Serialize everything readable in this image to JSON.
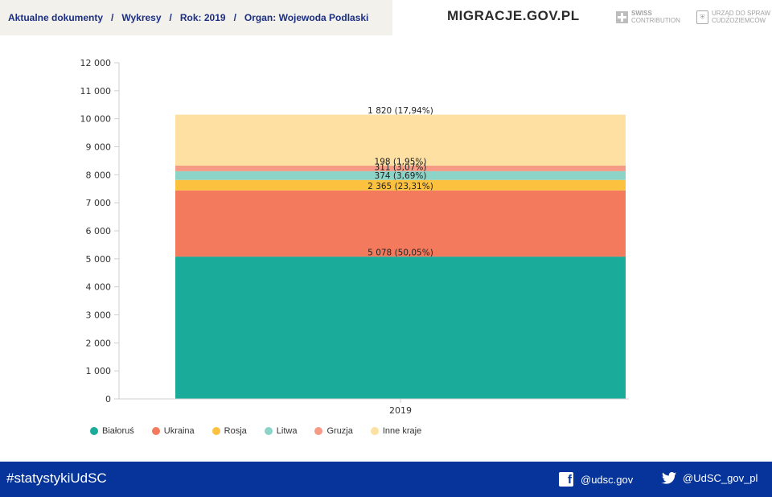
{
  "breadcrumb": [
    "Aktualne dokumenty",
    "Wykresy",
    "Rok: 2019",
    "Organ: Wojewoda Podlaski"
  ],
  "breadcrumb_separator": "/",
  "brand": "MIGRACJE.GOV.PL",
  "partners": {
    "swiss": {
      "line1": "SWISS",
      "line2": "CONTRIBUTION",
      "icon": "swiss-cross-icon"
    },
    "udsc": {
      "line1": "URZĄD DO SPRAW",
      "line2": "CUDZOZIEMCÓW",
      "icon": "udsc-emblem-icon"
    }
  },
  "chart_data": {
    "type": "bar",
    "stacked": true,
    "categories": [
      "2019"
    ],
    "ylim": [
      0,
      12000
    ],
    "yticks": [
      0,
      1000,
      2000,
      3000,
      4000,
      5000,
      6000,
      7000,
      8000,
      9000,
      10000,
      11000,
      12000
    ],
    "ytick_labels": [
      "0",
      "1 000",
      "2 000",
      "3 000",
      "4 000",
      "5 000",
      "6 000",
      "7 000",
      "8 000",
      "9 000",
      "10 000",
      "11 000",
      "12 000"
    ],
    "grid": false,
    "legend_position": "bottom-left",
    "series": [
      {
        "name": "Białoruś",
        "values": [
          5078
        ],
        "label": "5 078 (50,05%)",
        "color": "#1aab9b"
      },
      {
        "name": "Ukraina",
        "values": [
          2365
        ],
        "label": "2 365 (23,31%)",
        "color": "#f47a5e"
      },
      {
        "name": "Rosja",
        "values": [
          374
        ],
        "label": "374 (3,69%)",
        "color": "#fcc23f"
      },
      {
        "name": "Litwa",
        "values": [
          311
        ],
        "label": "311 (3,07%)",
        "color": "#8bd4c7"
      },
      {
        "name": "Gruzja",
        "values": [
          198
        ],
        "label": "198 (1,95%)",
        "color": "#f59a85"
      },
      {
        "name": "Inne kraje",
        "values": [
          1820
        ],
        "label": "1 820 (17,94%)",
        "color": "#fde0a2"
      }
    ]
  },
  "footer": {
    "hashtag": "#statystykiUdSC",
    "facebook": {
      "handle": "@udsc.gov",
      "icon": "facebook-icon"
    },
    "twitter": {
      "handle": "@UdSC_gov_pl",
      "icon": "twitter-icon"
    }
  }
}
